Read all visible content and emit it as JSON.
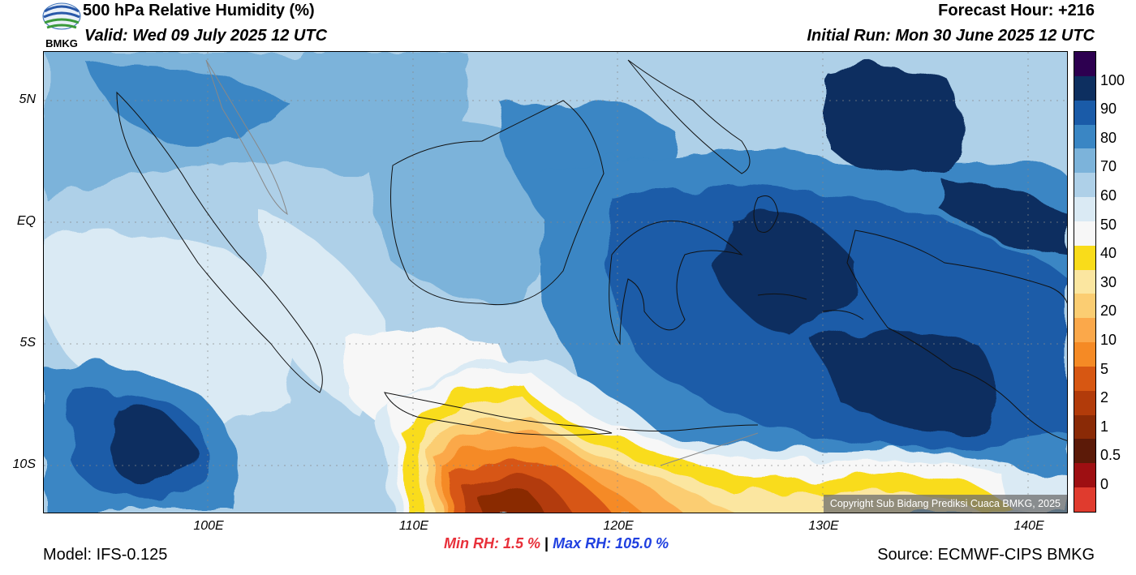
{
  "header": {
    "title": "500 hPa Relative Humidity (%)",
    "valid": "Valid: Wed 09 July 2025 12 UTC",
    "forecast_hour": "Forecast Hour: +216",
    "initial_run": "Initial Run: Mon 30 June 2025 12 UTC",
    "logo_text": "BMKG"
  },
  "axes": {
    "lat_labels": [
      "5N",
      "EQ",
      "5S",
      "10S"
    ],
    "lon_labels": [
      "100E",
      "110E",
      "120E",
      "130E",
      "140E"
    ]
  },
  "colorbar": {
    "labels": [
      "100",
      "90",
      "80",
      "70",
      "60",
      "50",
      "40",
      "30",
      "20",
      "10",
      "5",
      "2",
      "1",
      "0.5",
      "0"
    ],
    "colors_top_to_bottom": [
      "#2d0050",
      "#0d2f60",
      "#1a5ba8",
      "#3a86c4",
      "#7cb3da",
      "#aed0e8",
      "#daeaf4",
      "#f7f7f7",
      "#f9dc1a",
      "#fbe6a0",
      "#fbcd72",
      "#fba84a",
      "#f58a25",
      "#d75712",
      "#b23b0a",
      "#8a2a06",
      "#5c1a08",
      "#9e0f12",
      "#e03b2e"
    ]
  },
  "stats": {
    "min_rh": "Min RH:   1.5 %",
    "separator": "|",
    "max_rh": "Max RH: 105.0 %"
  },
  "footer": {
    "model": "Model: IFS-0.125",
    "source": "Source: ECMWF-CIPS BMKG",
    "copyright": "Copyright Sub Bidang Prediksi Cuaca BMKG, 2025"
  }
}
